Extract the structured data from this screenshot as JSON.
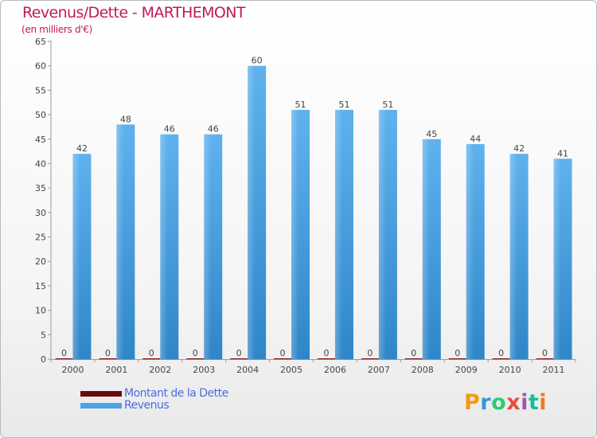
{
  "header": {
    "title": "Revenus/Dette - MARTHEMONT",
    "subtitle": "(en milliers d'€)"
  },
  "chart_data": {
    "type": "bar",
    "title": "Revenus/Dette - MARTHEMONT",
    "subtitle": "(en milliers d'€)",
    "xlabel": "",
    "ylabel": "",
    "ylim": [
      0,
      65
    ],
    "yticks": [
      0,
      5,
      10,
      15,
      20,
      25,
      30,
      35,
      40,
      45,
      50,
      55,
      60,
      65
    ],
    "grid": false,
    "legend_position": "bottom-left",
    "categories": [
      "2000",
      "2001",
      "2002",
      "2003",
      "2004",
      "2005",
      "2006",
      "2007",
      "2008",
      "2009",
      "2010",
      "2011"
    ],
    "series": [
      {
        "name": "Montant de la Dette",
        "color": "#7b0c0c",
        "values": [
          0,
          0,
          0,
          0,
          0,
          0,
          0,
          0,
          0,
          0,
          0,
          0
        ]
      },
      {
        "name": "Revenus",
        "color": "#4aa3e6",
        "values": [
          42,
          48,
          46,
          46,
          60,
          51,
          51,
          51,
          45,
          44,
          42,
          41
        ]
      }
    ]
  },
  "legend": {
    "items": [
      {
        "label": "Montant de la Dette",
        "color": "#6b0a0a"
      },
      {
        "label": "Revenus",
        "color": "#4aa3e6"
      }
    ]
  },
  "logo": {
    "text": "Proxiti",
    "colors": [
      "#f39c12",
      "#3498db",
      "#2ecc71",
      "#e74c3c",
      "#9b59b6",
      "#1abc9c",
      "#e67e22"
    ]
  }
}
